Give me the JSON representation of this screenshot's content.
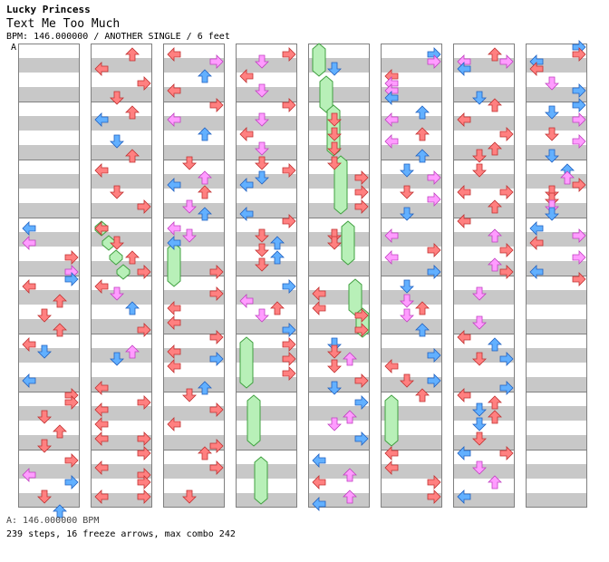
{
  "header": {
    "title": "Lucky Princess",
    "subtitle": "Text Me Too Much",
    "info": "BPM: 146.000000 / ANOTHER SINGLE / 6 feet",
    "marker": "A"
  },
  "footer": {
    "bpm_line": "A: 146.000000 BPM",
    "stats_line": "239 steps, 16 freeze arrows, max combo 242"
  },
  "colors": {
    "red": "#ff8080",
    "blue": "#62b0ff",
    "pink": "#ff9cff",
    "freeze": "#b8f0b8",
    "band": "#c8c8c8",
    "border": "#808080"
  },
  "columns": [
    {
      "arrows": [
        [
          "L",
          204,
          "b"
        ],
        [
          "L",
          220,
          "p"
        ],
        [
          "R",
          236,
          "r"
        ],
        [
          "R",
          252,
          "p"
        ],
        [
          "R",
          260,
          "b"
        ],
        [
          "L",
          268,
          "r"
        ],
        [
          "U",
          284,
          "r"
        ],
        [
          "D",
          300,
          "r"
        ],
        [
          "U",
          316,
          "r"
        ],
        [
          "L",
          332,
          "r"
        ],
        [
          "D",
          340,
          "b"
        ],
        [
          "L",
          372,
          "b"
        ],
        [
          "R",
          388,
          "r"
        ],
        [
          "R",
          396,
          "r"
        ],
        [
          "D",
          412,
          "r"
        ],
        [
          "U",
          428,
          "r"
        ],
        [
          "D",
          444,
          "r"
        ],
        [
          "R",
          460,
          "r"
        ],
        [
          "L",
          476,
          "p"
        ],
        [
          "R",
          484,
          "b"
        ],
        [
          "D",
          500,
          "r"
        ],
        [
          "U",
          516,
          "b"
        ]
      ],
      "freezes": []
    },
    {
      "arrows": [
        [
          "U",
          12,
          "r"
        ],
        [
          "L",
          28,
          "r"
        ],
        [
          "R",
          44,
          "r"
        ],
        [
          "D",
          60,
          "r"
        ],
        [
          "U",
          76,
          "r"
        ],
        [
          "L",
          84,
          "b"
        ],
        [
          "D",
          108,
          "b"
        ],
        [
          "U",
          124,
          "r"
        ],
        [
          "L",
          140,
          "r"
        ],
        [
          "D",
          164,
          "r"
        ],
        [
          "R",
          180,
          "r"
        ],
        [
          "L",
          204,
          "r"
        ],
        [
          "D",
          220,
          "r"
        ],
        [
          "U",
          236,
          "r"
        ],
        [
          "R",
          252,
          "r"
        ],
        [
          "L",
          268,
          "r"
        ],
        [
          "D",
          276,
          "p"
        ],
        [
          "U",
          292,
          "b"
        ],
        [
          "R",
          316,
          "r"
        ],
        [
          "U",
          340,
          "p"
        ],
        [
          "D",
          348,
          "b"
        ],
        [
          "L",
          380,
          "r"
        ],
        [
          "R",
          396,
          "r"
        ],
        [
          "L",
          404,
          "r"
        ],
        [
          "L",
          420,
          "r"
        ],
        [
          "L",
          436,
          "r"
        ],
        [
          "R",
          436,
          "r"
        ],
        [
          "R",
          452,
          "r"
        ],
        [
          "L",
          468,
          "r"
        ],
        [
          "R",
          476,
          "r"
        ],
        [
          "R",
          484,
          "r"
        ],
        [
          "L",
          500,
          "r"
        ],
        [
          "R",
          500,
          "r"
        ]
      ],
      "freezes": [
        [
          0,
          196,
          212
        ],
        [
          1,
          212,
          228
        ],
        [
          2,
          228,
          244
        ],
        [
          3,
          244,
          260
        ]
      ]
    },
    {
      "arrows": [
        [
          "L",
          12,
          "r"
        ],
        [
          "R",
          20,
          "p"
        ],
        [
          "U",
          36,
          "b"
        ],
        [
          "L",
          52,
          "r"
        ],
        [
          "R",
          68,
          "r"
        ],
        [
          "L",
          84,
          "p"
        ],
        [
          "U",
          100,
          "b"
        ],
        [
          "D",
          132,
          "r"
        ],
        [
          "U",
          148,
          "p"
        ],
        [
          "L",
          156,
          "b"
        ],
        [
          "U",
          164,
          "r"
        ],
        [
          "D",
          180,
          "p"
        ],
        [
          "U",
          188,
          "b"
        ],
        [
          "L",
          204,
          "p"
        ],
        [
          "D",
          212,
          "p"
        ],
        [
          "L",
          220,
          "b"
        ],
        [
          "R",
          252,
          "r"
        ],
        [
          "R",
          276,
          "r"
        ],
        [
          "L",
          292,
          "r"
        ],
        [
          "L",
          308,
          "r"
        ],
        [
          "R",
          324,
          "r"
        ],
        [
          "L",
          340,
          "r"
        ],
        [
          "R",
          348,
          "b"
        ],
        [
          "L",
          356,
          "r"
        ],
        [
          "D",
          388,
          "r"
        ],
        [
          "U",
          380,
          "b"
        ],
        [
          "R",
          404,
          "r"
        ],
        [
          "L",
          420,
          "r"
        ],
        [
          "R",
          444,
          "r"
        ],
        [
          "U",
          452,
          "r"
        ],
        [
          "R",
          468,
          "r"
        ],
        [
          "D",
          500,
          "r"
        ]
      ],
      "freezes": [
        [
          0,
          220,
          268
        ]
      ]
    },
    {
      "arrows": [
        [
          "R",
          12,
          "r"
        ],
        [
          "D",
          20,
          "p"
        ],
        [
          "L",
          36,
          "r"
        ],
        [
          "D",
          52,
          "p"
        ],
        [
          "R",
          68,
          "r"
        ],
        [
          "D",
          84,
          "p"
        ],
        [
          "L",
          100,
          "r"
        ],
        [
          "D",
          116,
          "p"
        ],
        [
          "D",
          132,
          "r"
        ],
        [
          "R",
          140,
          "r"
        ],
        [
          "D",
          148,
          "b"
        ],
        [
          "L",
          156,
          "b"
        ],
        [
          "L",
          188,
          "b"
        ],
        [
          "R",
          196,
          "r"
        ],
        [
          "D",
          212,
          "r"
        ],
        [
          "D",
          228,
          "r"
        ],
        [
          "U",
          220,
          "b"
        ],
        [
          "U",
          236,
          "b"
        ],
        [
          "D",
          244,
          "r"
        ],
        [
          "R",
          268,
          "b"
        ],
        [
          "L",
          284,
          "p"
        ],
        [
          "U",
          292,
          "r"
        ],
        [
          "D",
          300,
          "p"
        ],
        [
          "R",
          316,
          "b"
        ],
        [
          "R",
          332,
          "r"
        ],
        [
          "R",
          348,
          "r"
        ],
        [
          "R",
          364,
          "r"
        ]
      ],
      "freezes": [
        [
          0,
          324,
          380
        ],
        [
          1,
          388,
          444
        ],
        [
          2,
          456,
          508
        ]
      ]
    },
    {
      "arrows": [
        [
          "D",
          28,
          "b"
        ],
        [
          "D",
          84,
          "r"
        ],
        [
          "D",
          100,
          "r"
        ],
        [
          "D",
          116,
          "r"
        ],
        [
          "D",
          132,
          "r"
        ],
        [
          "R",
          148,
          "r"
        ],
        [
          "R",
          164,
          "r"
        ],
        [
          "R",
          180,
          "r"
        ],
        [
          "D",
          212,
          "r"
        ],
        [
          "D",
          220,
          "r"
        ],
        [
          "L",
          276,
          "r"
        ],
        [
          "L",
          292,
          "r"
        ],
        [
          "R",
          300,
          "r"
        ],
        [
          "R",
          316,
          "r"
        ],
        [
          "D",
          332,
          "b"
        ],
        [
          "D",
          340,
          "r"
        ],
        [
          "U",
          348,
          "p"
        ],
        [
          "D",
          356,
          "r"
        ],
        [
          "R",
          372,
          "r"
        ],
        [
          "D",
          380,
          "b"
        ],
        [
          "R",
          396,
          "b"
        ],
        [
          "U",
          412,
          "p"
        ],
        [
          "D",
          420,
          "p"
        ],
        [
          "R",
          436,
          "b"
        ],
        [
          "L",
          460,
          "b"
        ],
        [
          "U",
          476,
          "p"
        ],
        [
          "L",
          484,
          "r"
        ],
        [
          "U",
          500,
          "p"
        ],
        [
          "L",
          508,
          "b"
        ]
      ],
      "freezes": [
        [
          0,
          0,
          36
        ],
        [
          1,
          36,
          76
        ],
        [
          2,
          68,
          124
        ],
        [
          3,
          124,
          188
        ],
        [
          4,
          196,
          244
        ],
        [
          5,
          260,
          300
        ],
        [
          6,
          292,
          324
        ]
      ]
    },
    {
      "arrows": [
        [
          "R",
          12,
          "b"
        ],
        [
          "R",
          20,
          "p"
        ],
        [
          "L",
          36,
          "r"
        ],
        [
          "L",
          44,
          "p"
        ],
        [
          "L",
          52,
          "p"
        ],
        [
          "L",
          60,
          "b"
        ],
        [
          "U",
          76,
          "b"
        ],
        [
          "L",
          84,
          "p"
        ],
        [
          "U",
          100,
          "r"
        ],
        [
          "L",
          108,
          "p"
        ],
        [
          "U",
          124,
          "b"
        ],
        [
          "D",
          140,
          "b"
        ],
        [
          "R",
          148,
          "p"
        ],
        [
          "D",
          164,
          "r"
        ],
        [
          "R",
          172,
          "p"
        ],
        [
          "D",
          188,
          "b"
        ],
        [
          "L",
          212,
          "p"
        ],
        [
          "R",
          228,
          "r"
        ],
        [
          "L",
          236,
          "p"
        ],
        [
          "R",
          252,
          "b"
        ],
        [
          "D",
          268,
          "b"
        ],
        [
          "D",
          284,
          "p"
        ],
        [
          "U",
          292,
          "r"
        ],
        [
          "D",
          300,
          "p"
        ],
        [
          "U",
          316,
          "b"
        ],
        [
          "R",
          344,
          "b"
        ],
        [
          "L",
          356,
          "r"
        ],
        [
          "D",
          372,
          "r"
        ],
        [
          "R",
          372,
          "b"
        ],
        [
          "U",
          388,
          "r"
        ],
        [
          "L",
          452,
          "r"
        ],
        [
          "L",
          468,
          "r"
        ],
        [
          "R",
          484,
          "r"
        ],
        [
          "R",
          500,
          "r"
        ]
      ],
      "freezes": [
        [
          0,
          388,
          444
        ]
      ]
    },
    {
      "arrows": [
        [
          "U",
          12,
          "r"
        ],
        [
          "L",
          20,
          "p"
        ],
        [
          "R",
          20,
          "p"
        ],
        [
          "L",
          28,
          "b"
        ],
        [
          "D",
          60,
          "b"
        ],
        [
          "U",
          68,
          "r"
        ],
        [
          "L",
          84,
          "r"
        ],
        [
          "R",
          100,
          "r"
        ],
        [
          "U",
          116,
          "r"
        ],
        [
          "D",
          124,
          "r"
        ],
        [
          "D",
          140,
          "r"
        ],
        [
          "L",
          164,
          "r"
        ],
        [
          "R",
          164,
          "r"
        ],
        [
          "U",
          180,
          "r"
        ],
        [
          "L",
          196,
          "r"
        ],
        [
          "U",
          212,
          "p"
        ],
        [
          "R",
          228,
          "r"
        ],
        [
          "U",
          244,
          "p"
        ],
        [
          "R",
          252,
          "r"
        ],
        [
          "D",
          276,
          "p"
        ],
        [
          "D",
          308,
          "p"
        ],
        [
          "L",
          324,
          "r"
        ],
        [
          "U",
          332,
          "b"
        ],
        [
          "D",
          348,
          "r"
        ],
        [
          "R",
          348,
          "b"
        ],
        [
          "L",
          388,
          "r"
        ],
        [
          "R",
          380,
          "b"
        ],
        [
          "U",
          396,
          "r"
        ],
        [
          "D",
          404,
          "b"
        ],
        [
          "U",
          412,
          "r"
        ],
        [
          "D",
          420,
          "b"
        ],
        [
          "D",
          436,
          "r"
        ],
        [
          "L",
          452,
          "b"
        ],
        [
          "R",
          452,
          "r"
        ],
        [
          "D",
          468,
          "p"
        ],
        [
          "U",
          484,
          "p"
        ],
        [
          "L",
          500,
          "b"
        ]
      ],
      "freezes": []
    },
    {
      "arrows": [
        [
          "R",
          4,
          "b"
        ],
        [
          "R",
          12,
          "r"
        ],
        [
          "L",
          20,
          "b"
        ],
        [
          "L",
          28,
          "r"
        ],
        [
          "D",
          44,
          "p"
        ],
        [
          "R",
          52,
          "b"
        ],
        [
          "R",
          68,
          "b"
        ],
        [
          "D",
          76,
          "b"
        ],
        [
          "R",
          84,
          "p"
        ],
        [
          "D",
          100,
          "r"
        ],
        [
          "R",
          108,
          "p"
        ],
        [
          "D",
          124,
          "b"
        ],
        [
          "U",
          140,
          "b"
        ],
        [
          "U",
          148,
          "p"
        ],
        [
          "R",
          156,
          "r"
        ],
        [
          "D",
          164,
          "r"
        ],
        [
          "D",
          172,
          "r"
        ],
        [
          "D",
          180,
          "p"
        ],
        [
          "D",
          188,
          "b"
        ],
        [
          "L",
          204,
          "b"
        ],
        [
          "R",
          212,
          "p"
        ],
        [
          "L",
          220,
          "r"
        ],
        [
          "R",
          236,
          "p"
        ],
        [
          "L",
          252,
          "b"
        ],
        [
          "R",
          260,
          "r"
        ]
      ],
      "freezes": []
    }
  ]
}
